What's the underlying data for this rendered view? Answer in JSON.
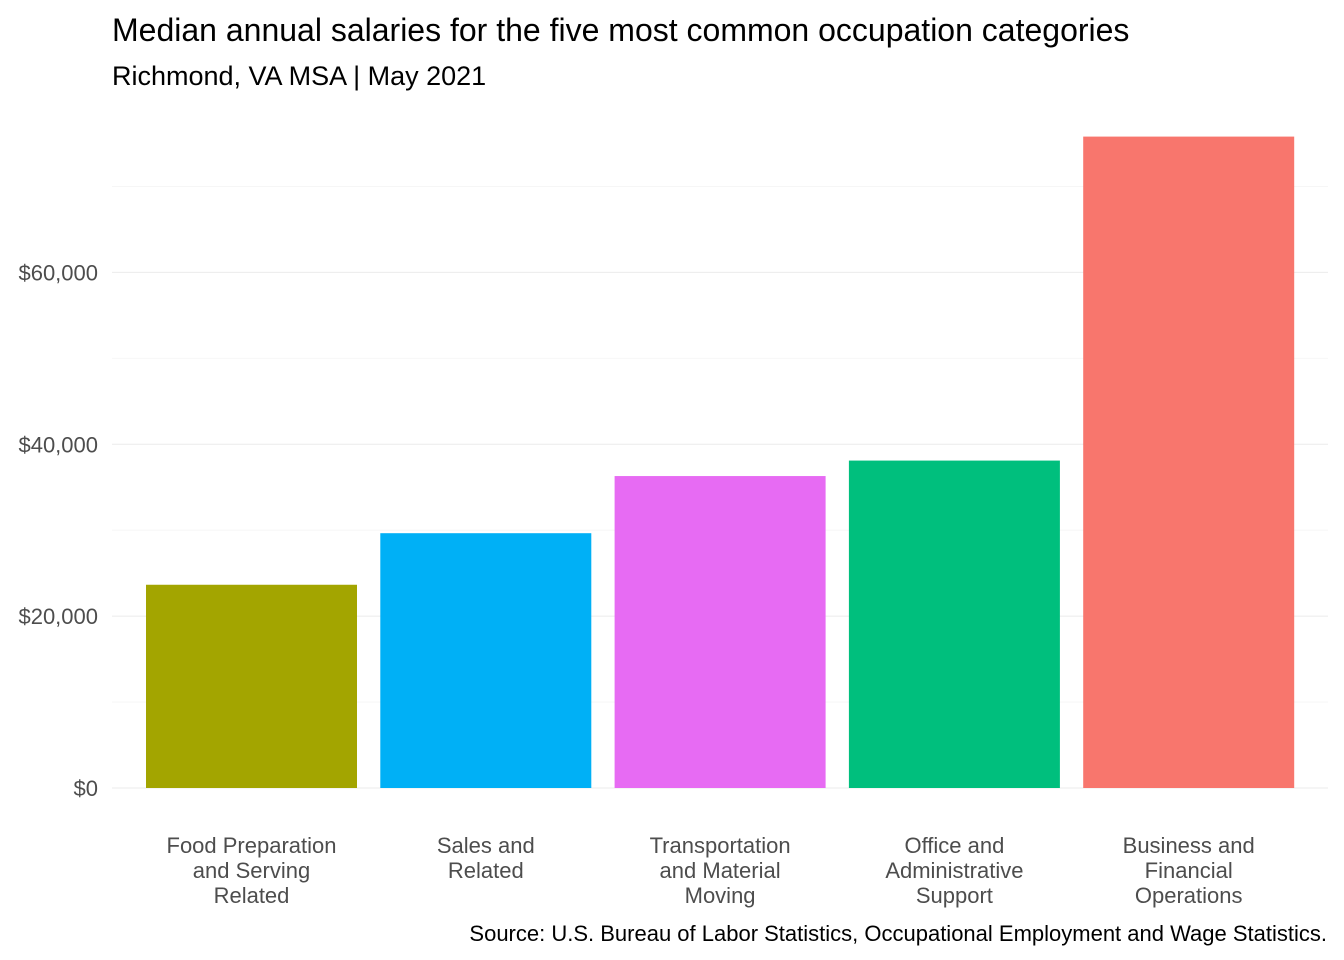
{
  "chart_data": {
    "type": "bar",
    "title": "Median annual salaries for the five most common occupation categories",
    "subtitle": "Richmond, VA MSA | May 2021",
    "caption": "Source: U.S. Bureau of Labor Statistics, Occupational Employment and Wage Statistics.",
    "xlabel": "",
    "ylabel": "",
    "categories": [
      [
        "Food Preparation",
        "and Serving",
        "Related"
      ],
      [
        "Sales and",
        "Related"
      ],
      [
        "Transportation",
        "and Material",
        "Moving"
      ],
      [
        "Office and",
        "Administrative",
        "Support"
      ],
      [
        "Business and",
        "Financial",
        "Operations"
      ]
    ],
    "values": [
      23650,
      29650,
      36300,
      38100,
      75800
    ],
    "colors": [
      "#A3A500",
      "#00B0F6",
      "#E76BF3",
      "#00BF7D",
      "#F8766D"
    ],
    "ylim": [
      0,
      80000
    ],
    "yticks": [
      0,
      20000,
      40000,
      60000
    ],
    "ytick_labels": [
      "$0",
      "$20,000",
      "$40,000",
      "$60,000"
    ],
    "grid": true,
    "legend": "none"
  }
}
